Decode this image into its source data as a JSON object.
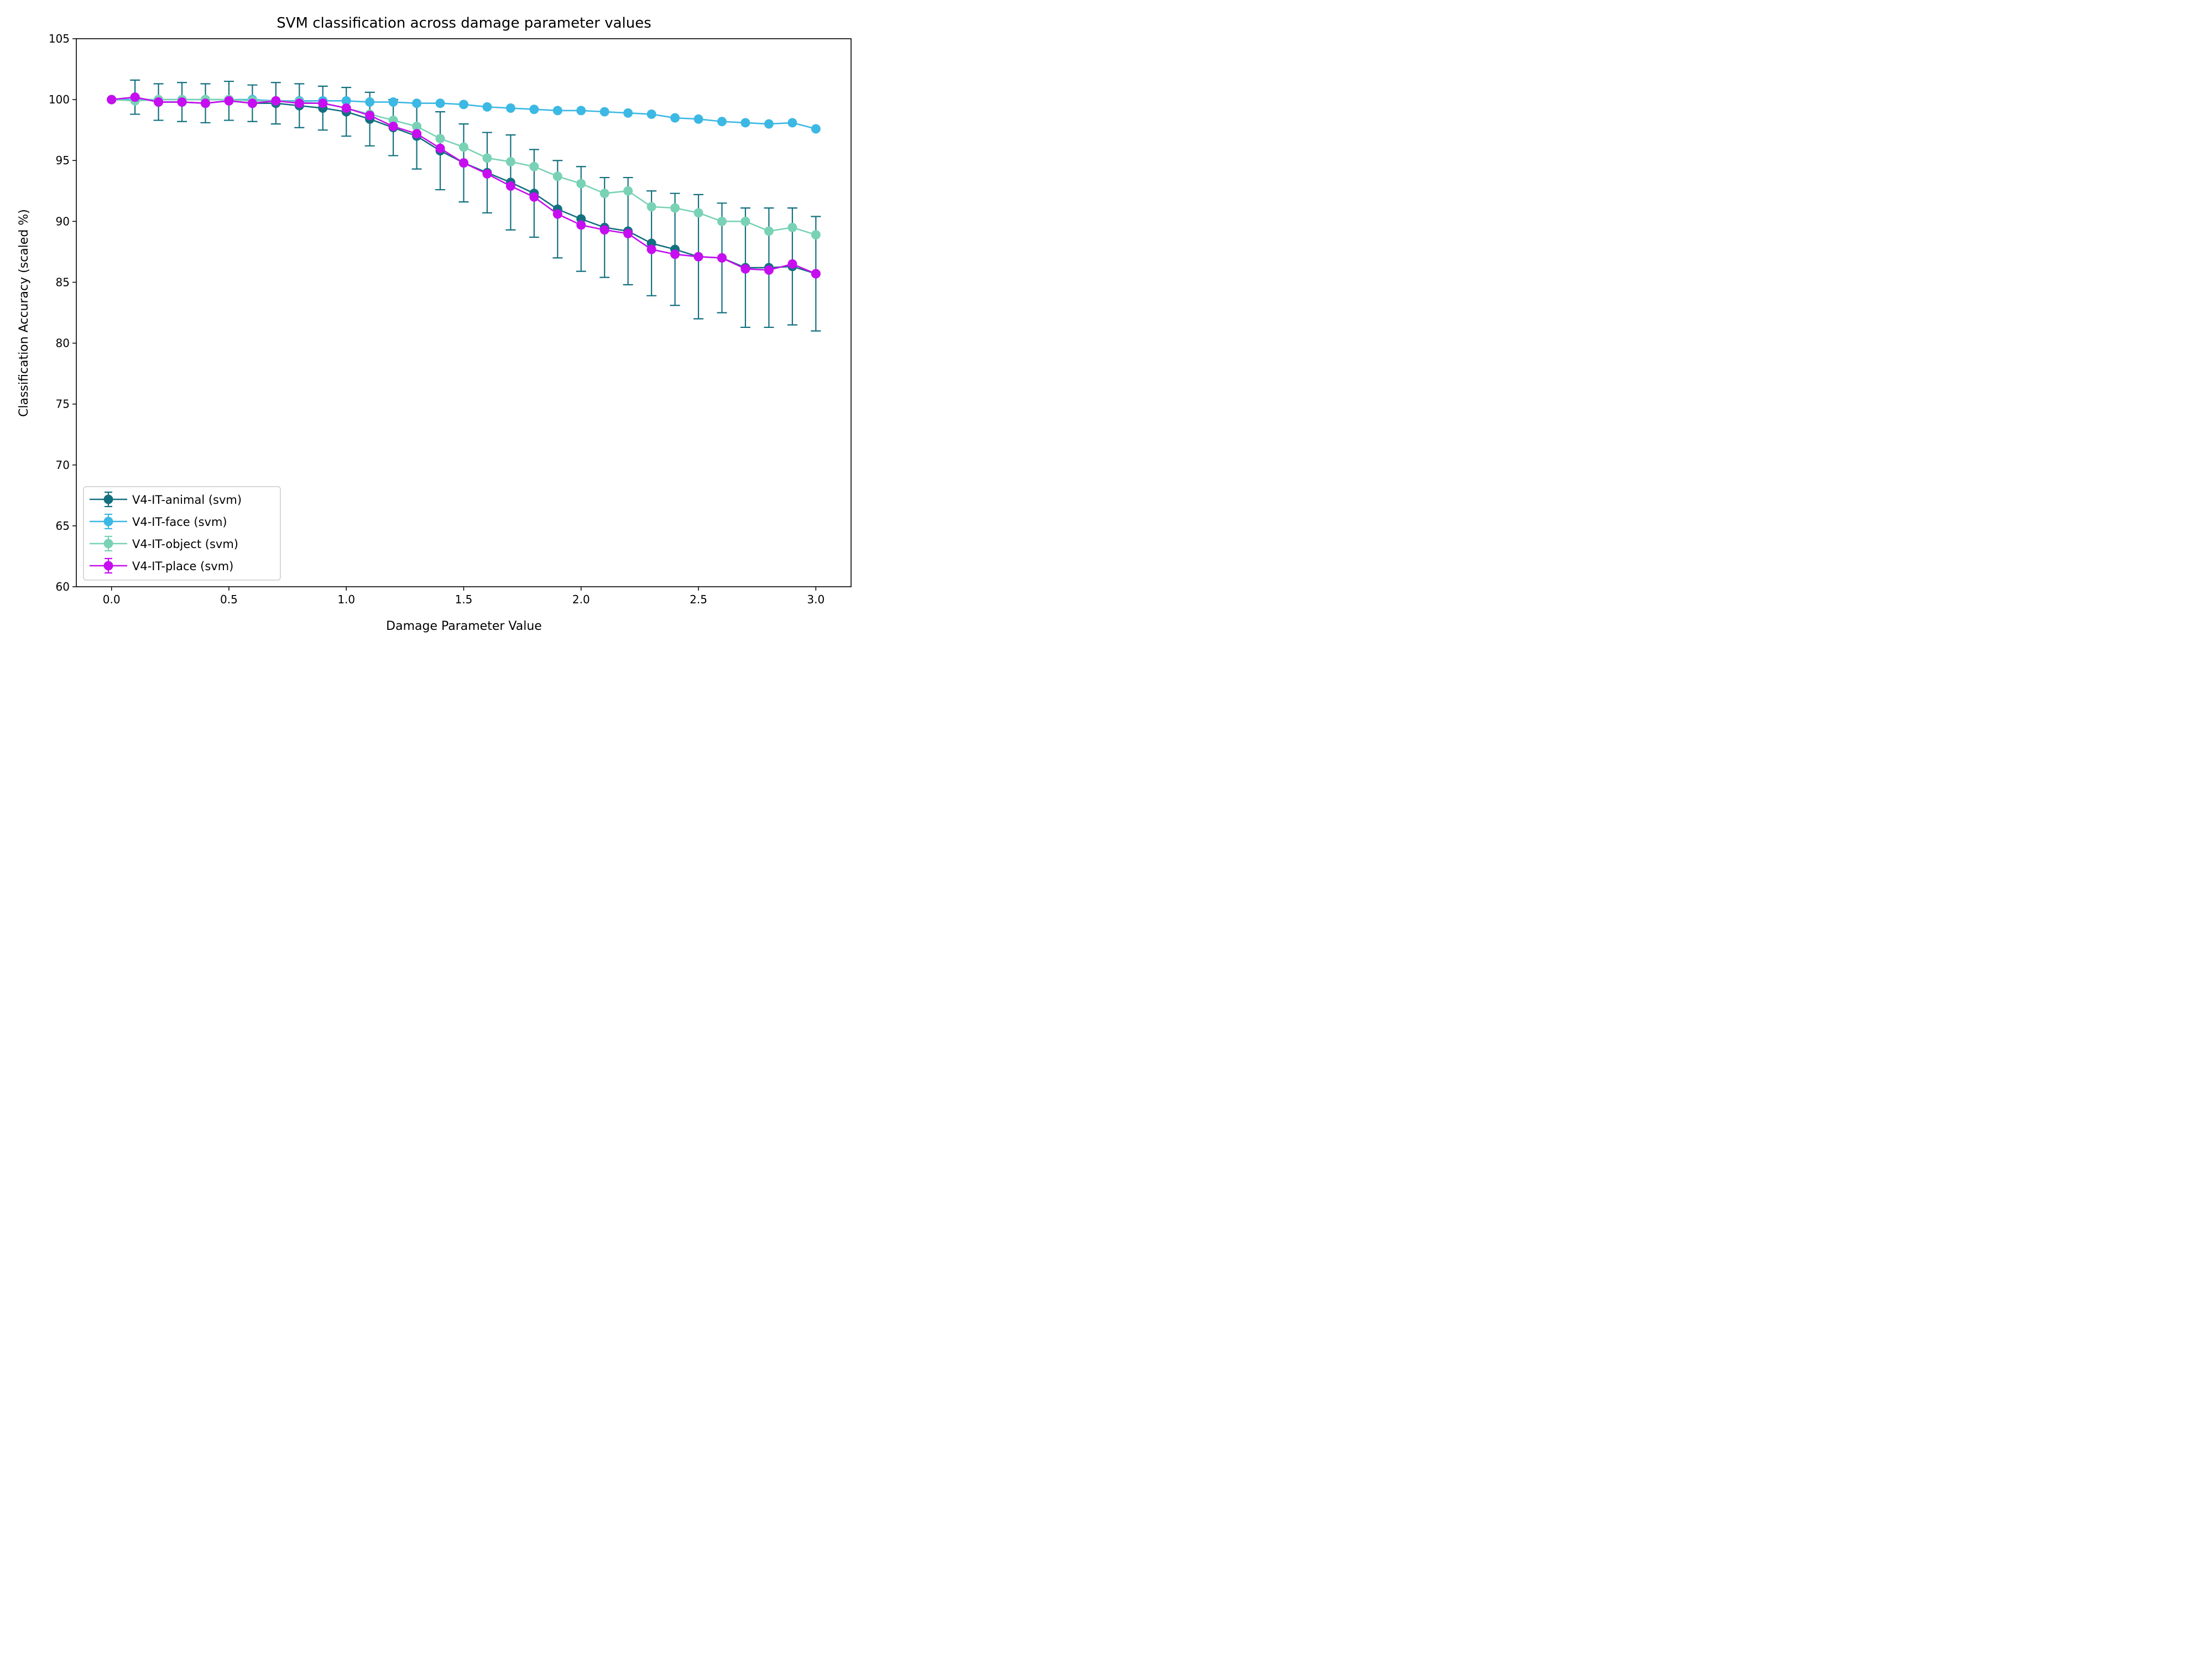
{
  "chart_data": {
    "type": "line",
    "title": "SVM classification across damage parameter values",
    "xlabel": "Damage Parameter Value",
    "ylabel": "Classification Accuracy (scaled %)",
    "xlim": [
      -0.15,
      3.15
    ],
    "ylim": [
      60,
      105
    ],
    "xticks": [
      "0.0",
      "0.5",
      "1.0",
      "1.5",
      "2.0",
      "2.5",
      "3.0"
    ],
    "yticks": [
      "60",
      "65",
      "70",
      "75",
      "80",
      "85",
      "90",
      "95",
      "100",
      "105"
    ],
    "grid": false,
    "legend_position": "lower-left",
    "x": [
      0.0,
      0.1,
      0.2,
      0.3,
      0.4,
      0.5,
      0.6,
      0.7,
      0.8,
      0.9,
      1.0,
      1.1,
      1.2,
      1.3,
      1.4,
      1.5,
      1.6,
      1.7,
      1.8,
      1.9,
      2.0,
      2.1,
      2.2,
      2.3,
      2.4,
      2.5,
      2.6,
      2.7,
      2.8,
      2.9,
      3.0
    ],
    "series": [
      {
        "name": "V4-IT-animal (svm)",
        "color": "#137080",
        "values": [
          100.0,
          100.2,
          99.8,
          99.8,
          99.7,
          99.9,
          99.7,
          99.7,
          99.5,
          99.3,
          99.0,
          98.4,
          97.7,
          97.0,
          95.8,
          94.8,
          94.0,
          93.2,
          92.3,
          91.0,
          90.2,
          89.5,
          89.2,
          88.2,
          87.7,
          87.1,
          87.0,
          86.2,
          86.2,
          86.3,
          85.7
        ],
        "error": [
          0.0,
          1.4,
          1.5,
          1.6,
          1.6,
          1.6,
          1.5,
          1.7,
          1.8,
          1.8,
          2.0,
          2.2,
          2.3,
          2.7,
          3.2,
          3.2,
          3.3,
          3.9,
          3.6,
          4.0,
          4.3,
          4.1,
          4.4,
          4.3,
          4.6,
          5.1,
          4.5,
          4.9,
          4.9,
          4.8,
          4.7
        ]
      },
      {
        "name": "V4-IT-face (svm)",
        "color": "#3cb8e4",
        "values": [
          100.0,
          100.0,
          100.0,
          100.0,
          100.0,
          100.0,
          100.0,
          99.9,
          99.9,
          99.9,
          99.9,
          99.8,
          99.8,
          99.7,
          99.7,
          99.6,
          99.4,
          99.3,
          99.2,
          99.1,
          99.1,
          99.0,
          98.9,
          98.8,
          98.5,
          98.4,
          98.2,
          98.1,
          98.0,
          98.1,
          97.6
        ]
      },
      {
        "name": "V4-IT-object (svm)",
        "color": "#79d2b5",
        "values": [
          100.0,
          99.9,
          100.0,
          100.0,
          100.0,
          100.0,
          99.9,
          99.9,
          99.8,
          99.7,
          99.3,
          98.8,
          98.3,
          97.8,
          96.8,
          96.1,
          95.2,
          94.9,
          94.5,
          93.7,
          93.1,
          92.3,
          92.5,
          91.2,
          91.1,
          90.7,
          90.0,
          90.0,
          89.2,
          89.5,
          88.9
        ]
      },
      {
        "name": "V4-IT-place (svm)",
        "color": "#c60ef0",
        "values": [
          100.0,
          100.2,
          99.8,
          99.8,
          99.7,
          99.9,
          99.7,
          99.9,
          99.7,
          99.7,
          99.3,
          98.7,
          97.8,
          97.2,
          96.0,
          94.8,
          93.9,
          92.9,
          92.0,
          90.6,
          89.7,
          89.3,
          89.0,
          87.7,
          87.3,
          87.1,
          87.0,
          86.1,
          86.0,
          86.5,
          85.7
        ]
      }
    ]
  }
}
